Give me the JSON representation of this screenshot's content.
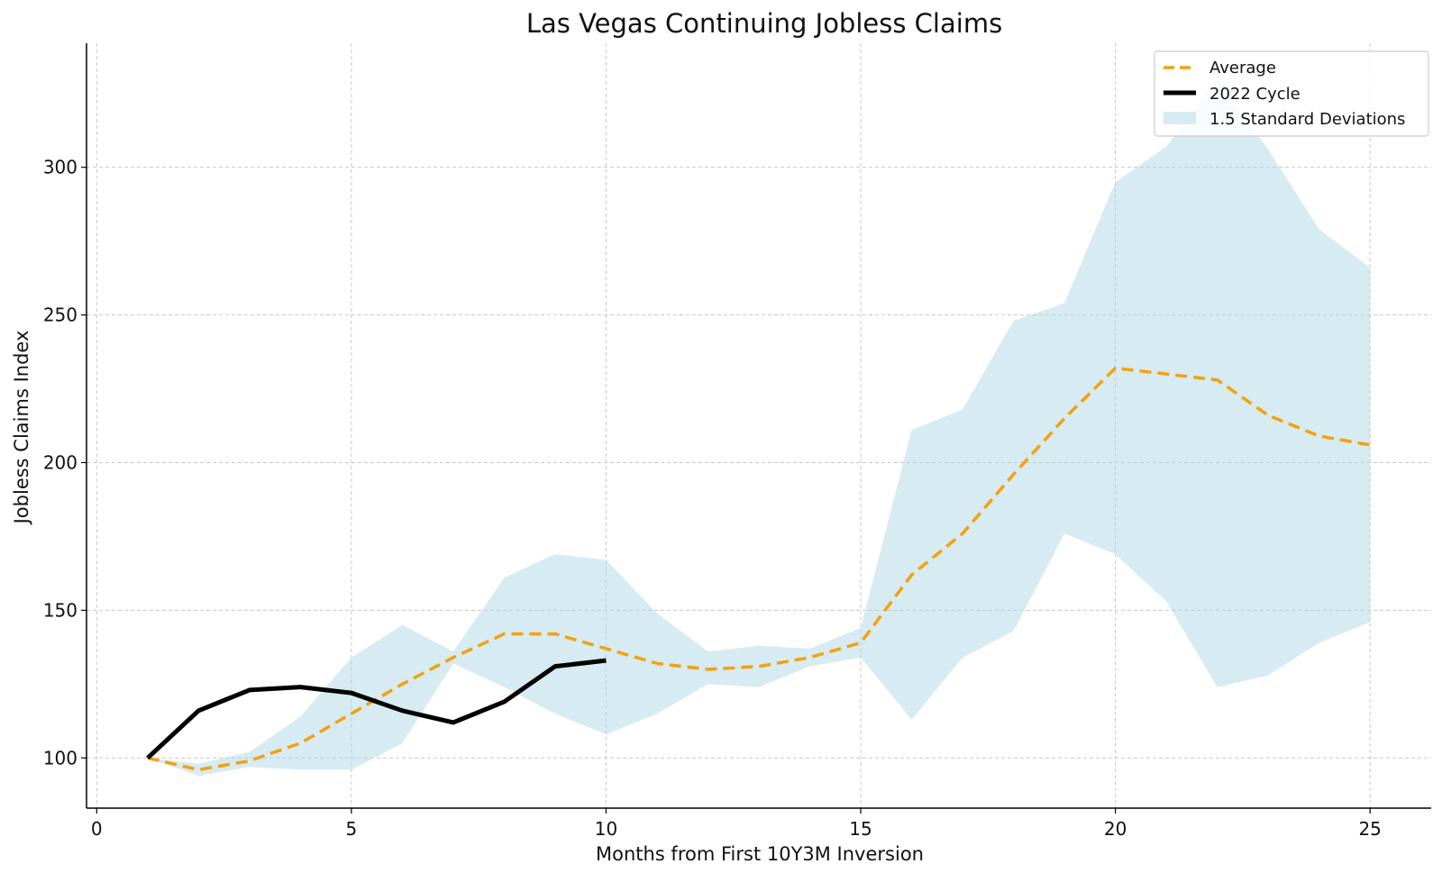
{
  "chart_data": {
    "type": "line",
    "title": "Las Vegas Continuing Jobless Claims",
    "xlabel": "Months from First 10Y3M Inversion",
    "ylabel": "Jobless Claims Index",
    "xlim": [
      -0.2,
      26.2
    ],
    "ylim": [
      83,
      342
    ],
    "xticks": [
      0,
      5,
      10,
      15,
      20,
      25
    ],
    "yticks": [
      100,
      150,
      200,
      250,
      300
    ],
    "grid": true,
    "legend_position": "top-right",
    "colors": {
      "average": "#f5a00f",
      "cycle": "#000000",
      "band": "#add8e6"
    },
    "x": [
      1,
      2,
      3,
      4,
      5,
      6,
      7,
      8,
      9,
      10,
      11,
      12,
      13,
      14,
      15,
      16,
      17,
      18,
      19,
      20,
      21,
      22,
      23,
      24,
      25
    ],
    "series": [
      {
        "name": "Average",
        "style": "dashed",
        "values": [
          100,
          96,
          99,
          105,
          115,
          125,
          134,
          142,
          142,
          137,
          132,
          130,
          131,
          134,
          139,
          162,
          176,
          196,
          215,
          232,
          230,
          228,
          216,
          209,
          206
        ]
      },
      {
        "name": "2022 Cycle",
        "style": "solid",
        "x": [
          1,
          2,
          3,
          4,
          5,
          6,
          7,
          8,
          9,
          10
        ],
        "values": [
          100,
          116,
          123,
          124,
          122,
          116,
          112,
          119,
          131,
          133
        ]
      }
    ],
    "band": {
      "name": "1.5 Standard Deviations",
      "lower": [
        100,
        94,
        97,
        96,
        96,
        105,
        132,
        124,
        115,
        108,
        115,
        125,
        124,
        131,
        134,
        113,
        134,
        143,
        176,
        169,
        153,
        124,
        128,
        139,
        146
      ],
      "upper": [
        100,
        98,
        102,
        114,
        134,
        145,
        136,
        161,
        169,
        167,
        149,
        136,
        138,
        137,
        144,
        211,
        218,
        248,
        254,
        295,
        307,
        330,
        306,
        279,
        266
      ]
    }
  }
}
